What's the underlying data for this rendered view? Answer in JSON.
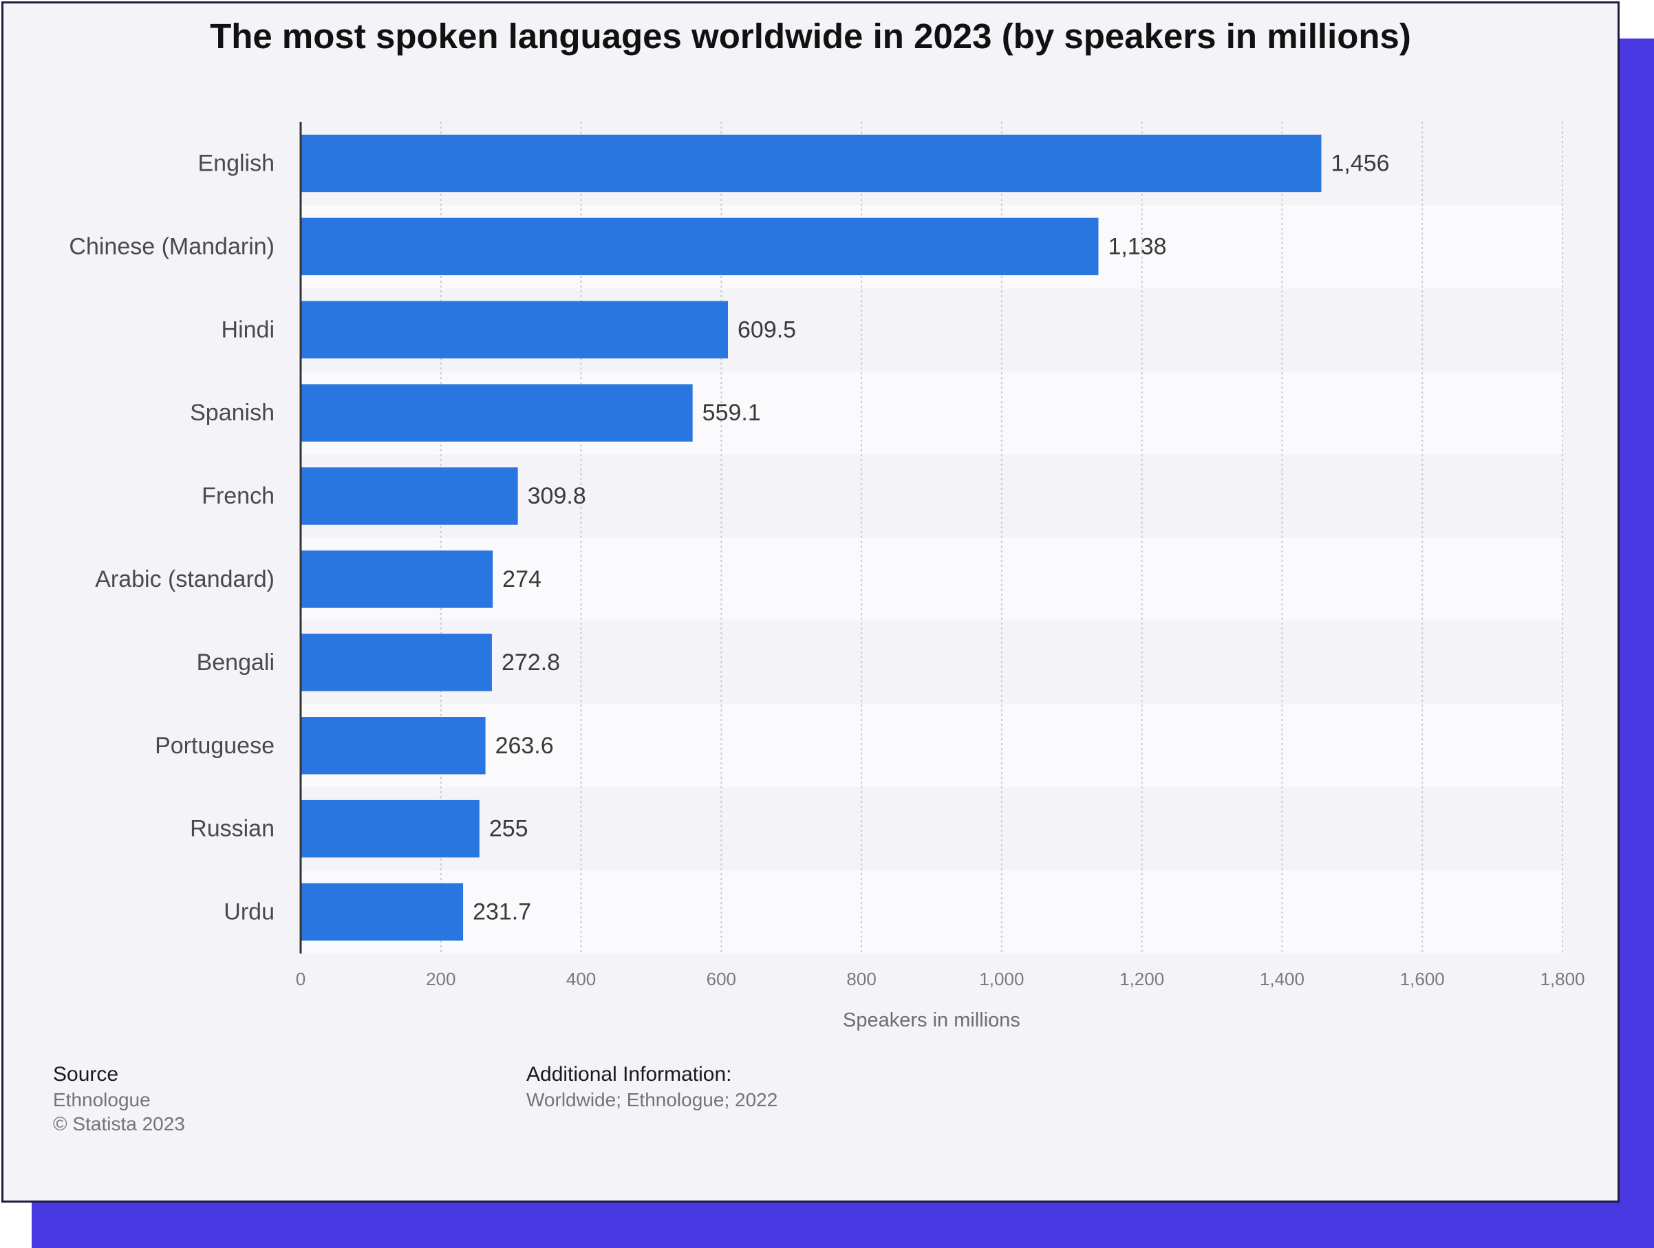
{
  "chart_data": {
    "type": "bar",
    "orientation": "horizontal",
    "title": "The most spoken languages worldwide in 2023 (by speakers in millions)",
    "xlabel": "Speakers in millions",
    "ylabel": "",
    "categories": [
      "English",
      "Chinese (Mandarin)",
      "Hindi",
      "Spanish",
      "French",
      "Arabic (standard)",
      "Bengali",
      "Portuguese",
      "Russian",
      "Urdu"
    ],
    "values": [
      1456,
      1138,
      609.5,
      559.1,
      309.8,
      274,
      272.8,
      263.6,
      255,
      231.7
    ],
    "value_labels": [
      "1,456",
      "1,138",
      "609.5",
      "559.1",
      "309.8",
      "274",
      "272.8",
      "263.6",
      "255",
      "231.7"
    ],
    "xlim": [
      0,
      1800
    ],
    "xticks": [
      0,
      200,
      400,
      600,
      800,
      1000,
      1200,
      1400,
      1600,
      1800
    ],
    "xtick_labels": [
      "0",
      "200",
      "400",
      "600",
      "800",
      "1,000",
      "1,200",
      "1,400",
      "1,600",
      "1,800"
    ],
    "grid": "vertical dotted",
    "colors": {
      "bar": "#2a76e0",
      "card": "#f4f3f7",
      "band_alt": "#faf9fc",
      "backdrop": "#4838e2",
      "grid": "#c9c9cf",
      "axis": "#333333"
    }
  },
  "footer": {
    "source_heading": "Source",
    "source_name": "Ethnologue",
    "copyright": "© Statista 2023",
    "info_heading": "Additional Information:",
    "info_text": "Worldwide; Ethnologue; 2022"
  }
}
